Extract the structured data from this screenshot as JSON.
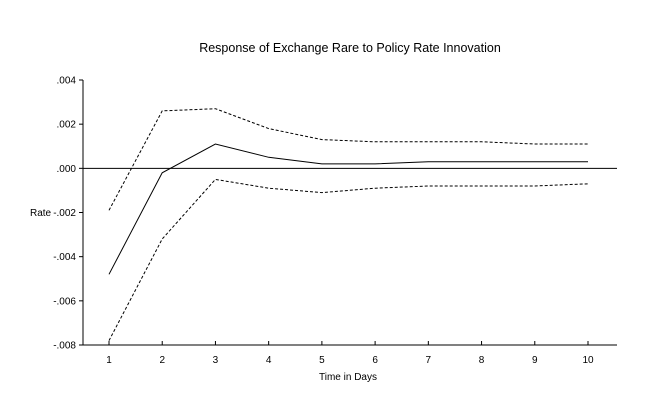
{
  "chart_data": {
    "type": "line",
    "title": "Response of Exchange Rare to Policy Rate Innovation",
    "xlabel": "Time in Days",
    "ylabel": "Rate",
    "x": [
      1,
      2,
      3,
      4,
      5,
      6,
      7,
      8,
      9,
      10
    ],
    "x_tick_labels": [
      "1",
      "2",
      "3",
      "4",
      "5",
      "6",
      "7",
      "8",
      "9",
      "10"
    ],
    "y_tick_values": [
      0.004,
      0.002,
      0.0,
      -0.002,
      -0.004,
      -0.006,
      -0.008
    ],
    "y_tick_labels": [
      ".004",
      ".002",
      ".000",
      "-.002",
      "-.004",
      "-.006",
      "-.008"
    ],
    "ylim": [
      -0.008,
      0.004
    ],
    "grid": false,
    "legend": "none",
    "zero_line": true,
    "series": [
      {
        "style": "solid",
        "color": "#000000",
        "values": [
          -0.0048,
          -0.0002,
          0.0011,
          0.0005,
          0.0002,
          0.0002,
          0.0003,
          0.0003,
          0.0003,
          0.0003
        ]
      },
      {
        "style": "dashed",
        "color": "#000000",
        "values": [
          -0.0019,
          0.0026,
          0.0027,
          0.0018,
          0.0013,
          0.0012,
          0.0012,
          0.0012,
          0.0011,
          0.0011
        ]
      },
      {
        "style": "dashed",
        "color": "#000000",
        "values": [
          -0.0078,
          -0.0032,
          -0.0005,
          -0.0009,
          -0.0011,
          -0.0009,
          -0.0008,
          -0.0008,
          -0.0008,
          -0.0007
        ]
      }
    ]
  }
}
